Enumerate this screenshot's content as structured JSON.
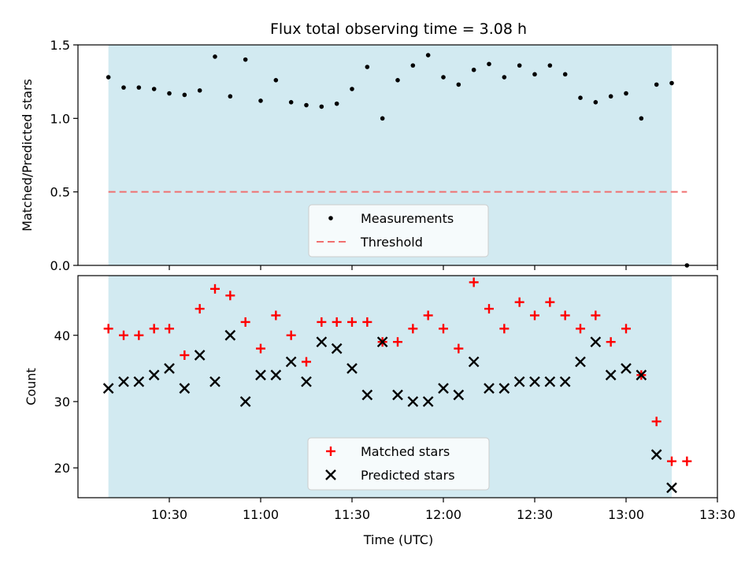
{
  "chart_data": [
    {
      "type": "scatter",
      "title": "Flux total observing time = 3.08 h",
      "ylabel": "Matched/Predicted stars",
      "xlabel": "",
      "xlim_minutes": [
        600,
        810
      ],
      "ylim": [
        0.0,
        1.5
      ],
      "yticks": [
        0.0,
        0.5,
        1.0,
        1.5
      ],
      "ytick_labels": [
        "0.0",
        "0.5",
        "1.0",
        "1.5"
      ],
      "shaded_region_minutes": [
        610,
        795
      ],
      "shaded_color": "#add8e6",
      "threshold": 0.5,
      "threshold_color": "#f07070",
      "series": [
        {
          "name": "Measurements",
          "color": "#000000",
          "x_minutes": [
            610,
            615,
            620,
            625,
            630,
            635,
            640,
            645,
            650,
            655,
            660,
            665,
            670,
            675,
            680,
            685,
            690,
            695,
            700,
            705,
            710,
            715,
            720,
            725,
            730,
            735,
            740,
            745,
            750,
            755,
            760,
            765,
            770,
            775,
            780,
            785,
            790,
            795,
            800
          ],
          "values": [
            1.28,
            1.21,
            1.21,
            1.2,
            1.17,
            1.16,
            1.19,
            1.42,
            1.15,
            1.4,
            1.12,
            1.26,
            1.11,
            1.09,
            1.08,
            1.1,
            1.2,
            1.35,
            1.0,
            1.26,
            1.36,
            1.43,
            1.28,
            1.23,
            1.33,
            1.37,
            1.28,
            1.36,
            1.3,
            1.36,
            1.3,
            1.14,
            1.11,
            1.15,
            1.17,
            1.0,
            1.23,
            1.24,
            0.0
          ]
        }
      ],
      "legend": {
        "position": "lower-center",
        "entries": [
          "Measurements",
          "Threshold"
        ]
      }
    },
    {
      "type": "scatter",
      "title": "",
      "ylabel": "Count",
      "xlabel": "Time (UTC)",
      "xlim_minutes": [
        600,
        810
      ],
      "ylim": [
        15.5,
        49
      ],
      "yticks": [
        20,
        30,
        40
      ],
      "ytick_labels": [
        "20",
        "30",
        "40"
      ],
      "xticks_minutes": [
        630,
        660,
        690,
        720,
        750,
        780,
        810
      ],
      "xtick_labels": [
        "10:30",
        "11:00",
        "11:30",
        "12:00",
        "12:30",
        "13:00",
        "13:30"
      ],
      "shaded_region_minutes": [
        610,
        795
      ],
      "series": [
        {
          "name": "Matched stars",
          "marker": "plus",
          "color": "#ff0000",
          "x_minutes": [
            610,
            615,
            620,
            625,
            630,
            635,
            640,
            645,
            650,
            655,
            660,
            665,
            670,
            675,
            680,
            685,
            690,
            695,
            700,
            705,
            710,
            715,
            720,
            725,
            730,
            735,
            740,
            745,
            750,
            755,
            760,
            765,
            770,
            775,
            780,
            785,
            790,
            795,
            800
          ],
          "values": [
            41,
            40,
            40,
            41,
            41,
            37,
            44,
            47,
            46,
            42,
            38,
            43,
            40,
            36,
            42,
            42,
            42,
            42,
            39,
            39,
            41,
            43,
            41,
            38,
            48,
            44,
            41,
            45,
            43,
            45,
            43,
            41,
            43,
            39,
            41,
            34,
            27,
            21,
            21
          ]
        },
        {
          "name": "Predicted stars",
          "marker": "x",
          "color": "#000000",
          "x_minutes": [
            610,
            615,
            620,
            625,
            630,
            635,
            640,
            645,
            650,
            655,
            660,
            665,
            670,
            675,
            680,
            685,
            690,
            695,
            700,
            705,
            710,
            715,
            720,
            725,
            730,
            735,
            740,
            745,
            750,
            755,
            760,
            765,
            770,
            775,
            780,
            785,
            790,
            795
          ],
          "values": [
            32,
            33,
            33,
            34,
            35,
            32,
            37,
            33,
            40,
            30,
            34,
            34,
            36,
            33,
            39,
            38,
            35,
            31,
            39,
            31,
            30,
            30,
            32,
            31,
            36,
            32,
            32,
            33,
            33,
            33,
            33,
            36,
            39,
            34,
            35,
            34,
            22,
            17
          ]
        }
      ],
      "legend": {
        "position": "lower-center",
        "entries": [
          "Matched stars",
          "Predicted stars"
        ]
      }
    }
  ]
}
